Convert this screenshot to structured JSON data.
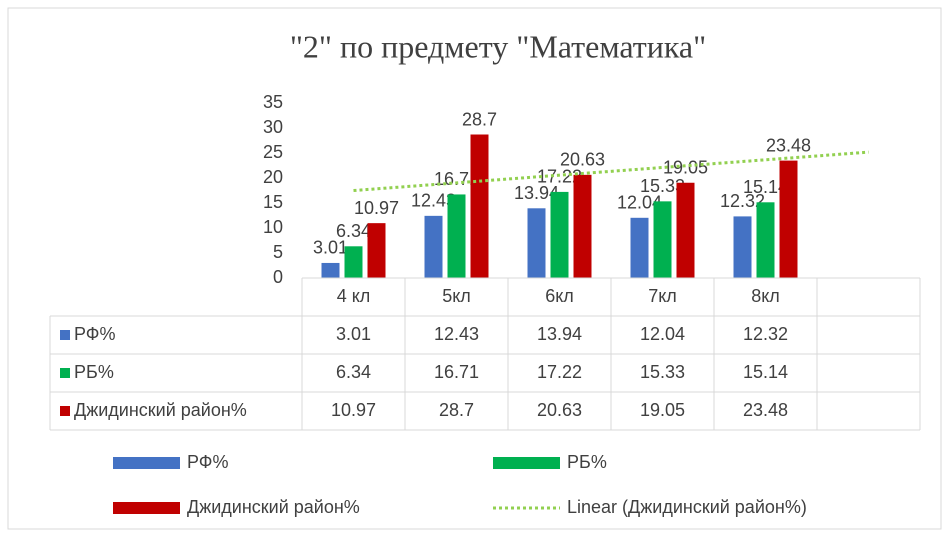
{
  "chart_data": {
    "type": "bar",
    "title": "\"2\" по предмету \"Математика\"",
    "categories": [
      "4 кл",
      "5кл",
      "6кл",
      "7кл",
      "8кл",
      null
    ],
    "series": [
      {
        "name": "РФ%",
        "color": "#4472c4",
        "values": [
          3.01,
          12.43,
          13.94,
          12.04,
          12.32,
          null
        ]
      },
      {
        "name": "РБ%",
        "color": "#00b050",
        "values": [
          6.34,
          16.71,
          17.22,
          15.33,
          15.14,
          null
        ]
      },
      {
        "name": "Джидинский район%",
        "color": "#c00000",
        "values": [
          10.97,
          28.7,
          20.63,
          19.05,
          23.48,
          null
        ]
      }
    ],
    "trendline": {
      "name": "Linear (Джидинский район%)",
      "color": "#92d050",
      "series": 2,
      "kind": "linear"
    },
    "ylim": [
      0,
      35
    ],
    "yticks": [
      0,
      5,
      10,
      15,
      20,
      25,
      30,
      35
    ],
    "grid": false,
    "data_table": true
  }
}
